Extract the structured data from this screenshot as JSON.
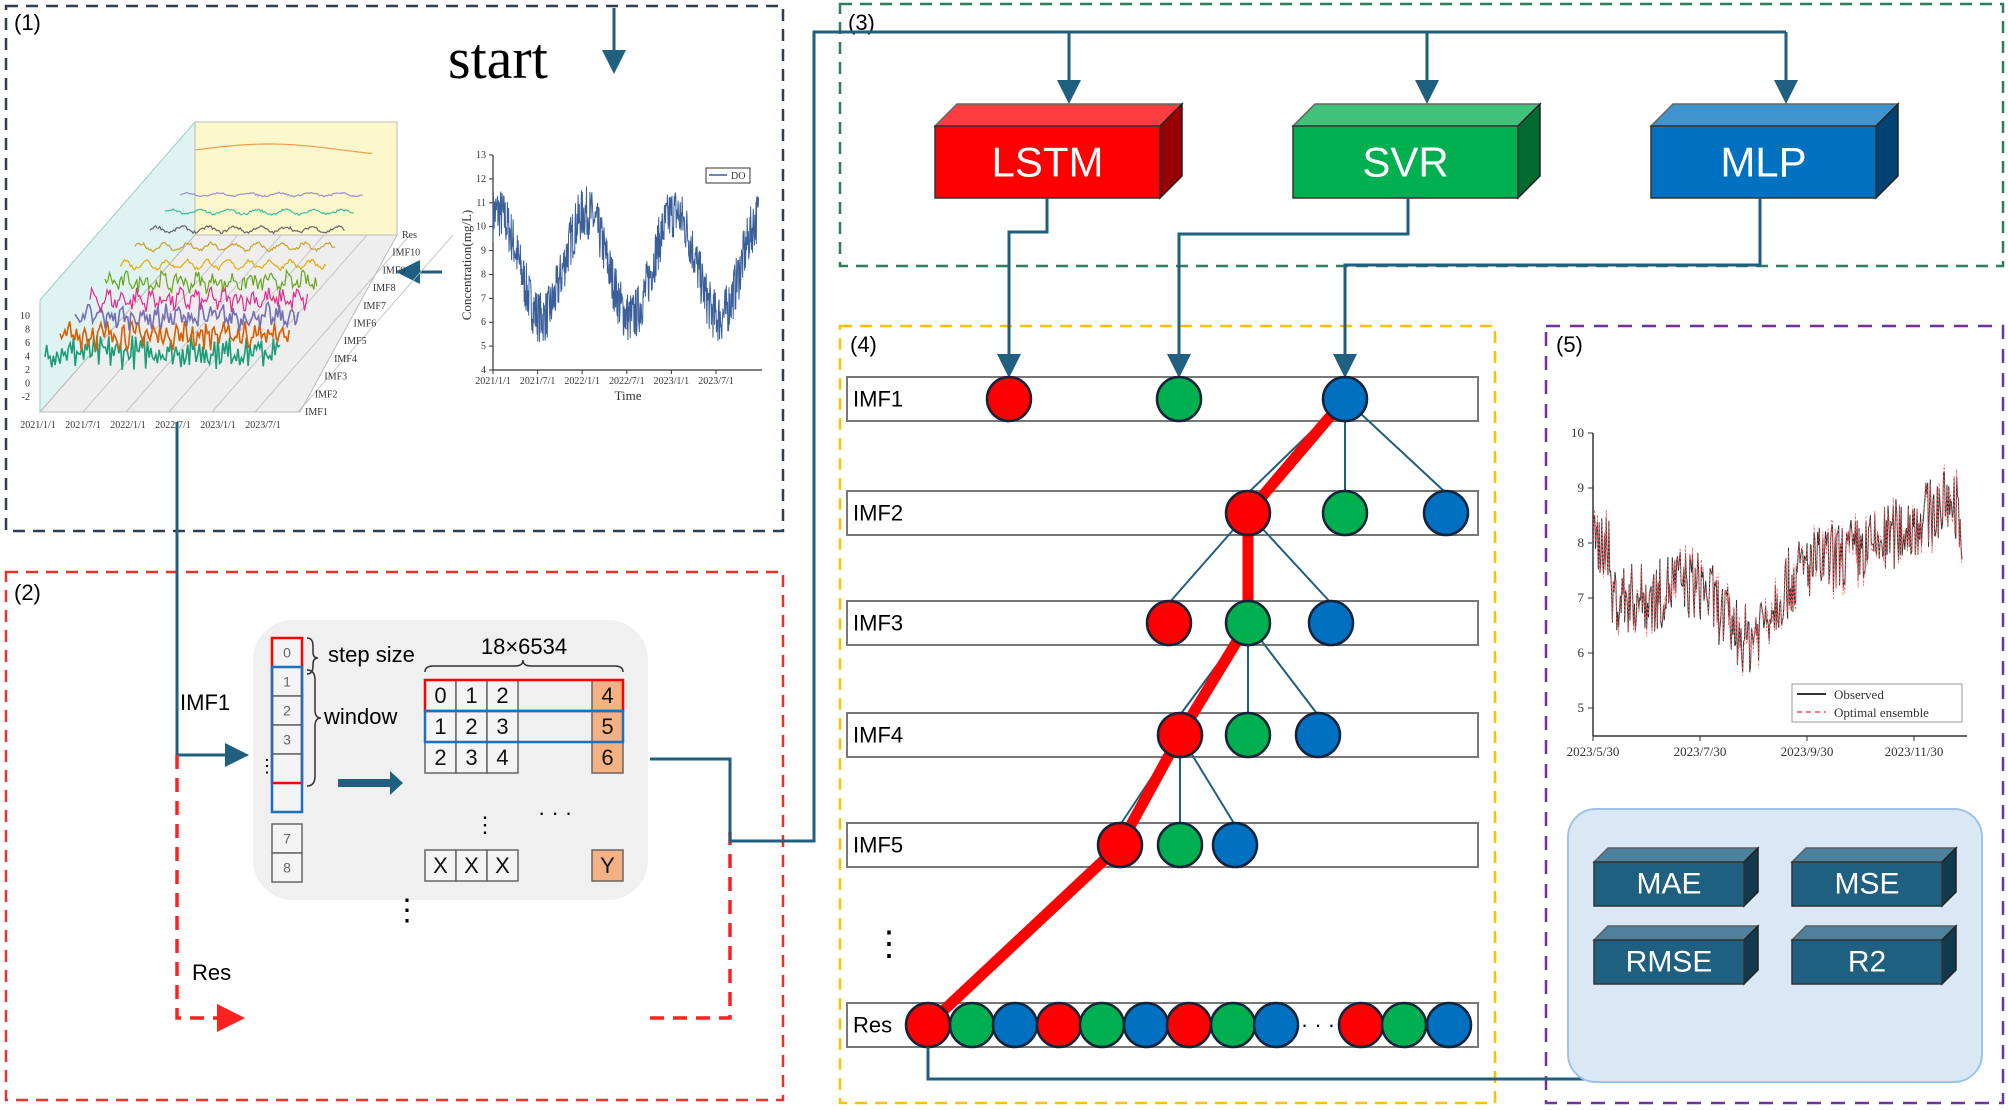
{
  "panels": {
    "p1": "(1)",
    "p2": "(2)",
    "p3": "(3)",
    "p4": "(4)",
    "p5": "(5)"
  },
  "panel1": {
    "start_label": "start",
    "do_chart": {
      "ylabel": "Concentration(mg/L)",
      "xlabel": "Time",
      "legend": "DO",
      "yticks": [
        "4",
        "5",
        "6",
        "7",
        "8",
        "9",
        "10",
        "11",
        "12",
        "13"
      ],
      "xticks": [
        "2021/1/1",
        "2021/7/1",
        "2022/1/1",
        "2022/7/1",
        "2023/1/1",
        "2023/7/1"
      ],
      "color": "#3a5f9a"
    },
    "decomp_chart": {
      "series": [
        "IMF1",
        "IMF2",
        "IMF3",
        "IMF4",
        "IMF5",
        "IMF6",
        "IMF7",
        "IMF8",
        "IMF9",
        "IMF10",
        "Res"
      ],
      "colors": [
        "#1b9e77",
        "#d95f02",
        "#7570b3",
        "#e7298a",
        "#66a61e",
        "#e6ab02",
        "#c9a227",
        "#666666",
        "#3fbf9f",
        "#9a8fd0",
        "#f39c4a"
      ],
      "yticks": [
        "-2",
        "0",
        "2",
        "4",
        "6",
        "8",
        "10"
      ],
      "xticks": [
        "2021/1/1",
        "2021/7/1",
        "2022/1/1",
        "2022/7/1",
        "2023/1/1",
        "2023/7/1"
      ]
    }
  },
  "panel2": {
    "imf_label": "IMF1",
    "res_label": "Res",
    "step_size": "step size",
    "window": "window",
    "matrix_dims": "18×6534",
    "column_cells": [
      "0",
      "1",
      "2",
      "3",
      "",
      "",
      "7",
      "8"
    ],
    "matrix_rows": [
      [
        "0",
        "1",
        "2",
        "4"
      ],
      [
        "1",
        "2",
        "3",
        "5"
      ],
      [
        "2",
        "3",
        "4",
        "6"
      ]
    ],
    "last_row": [
      "X",
      "X",
      "X",
      "Y"
    ],
    "ellipsis": "· · ·"
  },
  "panel3": {
    "models": [
      {
        "label": "LSTM",
        "color": "#ff0000"
      },
      {
        "label": "SVR",
        "color": "#00b050"
      },
      {
        "label": "MLP",
        "color": "#0070c0"
      }
    ]
  },
  "panel4": {
    "rows": [
      "IMF1",
      "IMF2",
      "IMF3",
      "IMF4",
      "IMF5",
      "Res"
    ],
    "ellipsis": "· · ·"
  },
  "panel5": {
    "yticks": [
      "5",
      "6",
      "7",
      "8",
      "9",
      "10"
    ],
    "xticks": [
      "2023/5/30",
      "2023/7/30",
      "2023/9/30",
      "2023/11/30"
    ],
    "legend": [
      "Observed",
      "Optimal ensemble"
    ],
    "metrics": [
      "MAE",
      "MSE",
      "RMSE",
      "R2"
    ]
  }
}
